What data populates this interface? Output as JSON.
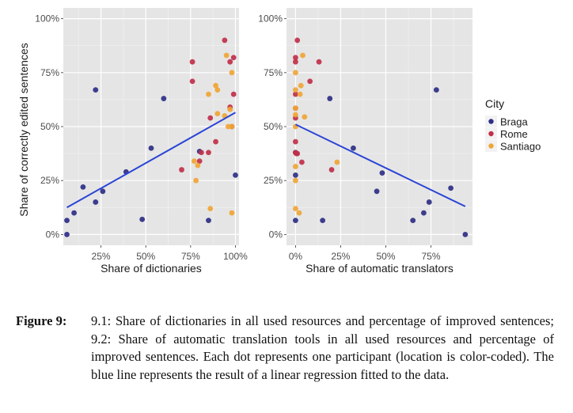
{
  "chart_data": [
    {
      "type": "scatter",
      "title": "",
      "xlabel": "Share of dictionaries",
      "ylabel": "Share of correctly edited sentences",
      "xlim": [
        0.04,
        1.02
      ],
      "ylim": [
        -0.05,
        1.05
      ],
      "x_ticks": [
        0.25,
        0.5,
        0.75,
        1.0
      ],
      "x_tick_labels": [
        "25%",
        "50%",
        "75%",
        "100%"
      ],
      "y_ticks": [
        0,
        0.25,
        0.5,
        0.75,
        1.0
      ],
      "y_tick_labels": [
        "0%",
        "25%",
        "50%",
        "75%",
        "100%"
      ],
      "grid": true,
      "series": [
        {
          "name": "Braga",
          "points": [
            [
              0.06,
              0.0
            ],
            [
              0.06,
              0.065
            ],
            [
              0.1,
              0.1
            ],
            [
              0.15,
              0.22
            ],
            [
              0.22,
              0.15
            ],
            [
              0.26,
              0.2
            ],
            [
              0.39,
              0.29
            ],
            [
              0.48,
              0.07
            ],
            [
              0.53,
              0.4
            ],
            [
              0.22,
              0.67
            ],
            [
              0.6,
              0.63
            ],
            [
              0.85,
              0.065
            ],
            [
              1.0,
              0.275
            ],
            [
              0.8,
              0.385
            ]
          ]
        },
        {
          "name": "Rome",
          "points": [
            [
              0.76,
              0.8
            ],
            [
              0.76,
              0.71
            ],
            [
              0.94,
              0.9
            ],
            [
              0.99,
              0.82
            ],
            [
              0.97,
              0.8
            ],
            [
              0.99,
              0.65
            ],
            [
              0.97,
              0.59
            ],
            [
              0.86,
              0.54
            ],
            [
              0.98,
              0.5
            ],
            [
              0.89,
              0.43
            ],
            [
              0.81,
              0.38
            ],
            [
              0.85,
              0.38
            ],
            [
              0.8,
              0.34
            ],
            [
              0.7,
              0.3
            ]
          ]
        },
        {
          "name": "Santiago",
          "points": [
            [
              0.95,
              0.83
            ],
            [
              0.98,
              0.75
            ],
            [
              0.89,
              0.69
            ],
            [
              0.9,
              0.67
            ],
            [
              0.85,
              0.65
            ],
            [
              0.97,
              0.58
            ],
            [
              0.9,
              0.56
            ],
            [
              0.94,
              0.55
            ],
            [
              0.96,
              0.5
            ],
            [
              0.98,
              0.5
            ],
            [
              0.77,
              0.34
            ],
            [
              0.79,
              0.32
            ],
            [
              0.78,
              0.25
            ],
            [
              0.86,
              0.12
            ],
            [
              0.98,
              0.1
            ]
          ]
        }
      ],
      "regression_line": {
        "x": [
          0.06,
          1.0
        ],
        "y": [
          0.125,
          0.565
        ],
        "color": "#2a44d6"
      }
    },
    {
      "type": "scatter",
      "title": "",
      "xlabel": "Share of automatic translators",
      "ylabel": "",
      "xlim": [
        -0.05,
        0.98
      ],
      "ylim": [
        -0.05,
        1.05
      ],
      "x_ticks": [
        0,
        0.25,
        0.5,
        0.75
      ],
      "x_tick_labels": [
        "0%",
        "25%",
        "50%",
        "75%"
      ],
      "y_ticks": [
        0,
        0.25,
        0.5,
        0.75,
        1.0
      ],
      "y_tick_labels": [
        "0%",
        "25%",
        "50%",
        "75%",
        "100%"
      ],
      "grid": true,
      "series": [
        {
          "name": "Braga",
          "points": [
            [
              0.78,
              0.67
            ],
            [
              0.19,
              0.63
            ],
            [
              0.32,
              0.4
            ],
            [
              0.48,
              0.285
            ],
            [
              0.45,
              0.2
            ],
            [
              0.86,
              0.215
            ],
            [
              0.74,
              0.15
            ],
            [
              0.71,
              0.1
            ],
            [
              0.65,
              0.065
            ],
            [
              0.15,
              0.065
            ],
            [
              0.0,
              0.065
            ],
            [
              0.0,
              0.275
            ],
            [
              0.0,
              0.38
            ],
            [
              0.94,
              0.0
            ]
          ]
        },
        {
          "name": "Rome",
          "points": [
            [
              0.01,
              0.9
            ],
            [
              0.0,
              0.82
            ],
            [
              0.0,
              0.8
            ],
            [
              0.13,
              0.8
            ],
            [
              0.08,
              0.71
            ],
            [
              0.0,
              0.65
            ],
            [
              0.0,
              0.585
            ],
            [
              0.0,
              0.54
            ],
            [
              0.0,
              0.43
            ],
            [
              0.01,
              0.375
            ],
            [
              0.035,
              0.335
            ],
            [
              0.2,
              0.3
            ],
            [
              0.0,
              0.38
            ],
            [
              0.005,
              0.375
            ]
          ]
        },
        {
          "name": "Santiago",
          "points": [
            [
              0.04,
              0.83
            ],
            [
              0.0,
              0.75
            ],
            [
              0.03,
              0.69
            ],
            [
              0.0,
              0.67
            ],
            [
              0.025,
              0.65
            ],
            [
              0.0,
              0.585
            ],
            [
              0.0,
              0.555
            ],
            [
              0.05,
              0.545
            ],
            [
              0.0,
              0.5
            ],
            [
              0.23,
              0.335
            ],
            [
              0.0,
              0.315
            ],
            [
              0.0,
              0.25
            ],
            [
              0.0,
              0.12
            ],
            [
              0.02,
              0.1
            ]
          ]
        }
      ],
      "regression_line": {
        "x": [
          0.0,
          0.94
        ],
        "y": [
          0.51,
          0.13
        ],
        "color": "#2a44d6"
      }
    }
  ],
  "legend": {
    "title": "City",
    "placement": "right",
    "items": [
      {
        "label": "Braga",
        "color": "#2e2f86"
      },
      {
        "label": "Rome",
        "color": "#c0304a"
      },
      {
        "label": "Santiago",
        "color": "#f0a535"
      }
    ]
  },
  "caption": {
    "label": "Figure 9:",
    "text": "9.1: Share of dictionaries in all used resources and percentage of improved sentences; 9.2: Share of automatic translation tools in all used resources and percentage of improved sentences. Each dot represents one participant (location is color-coded). The blue line represents the result of a linear regression fitted to the data."
  }
}
